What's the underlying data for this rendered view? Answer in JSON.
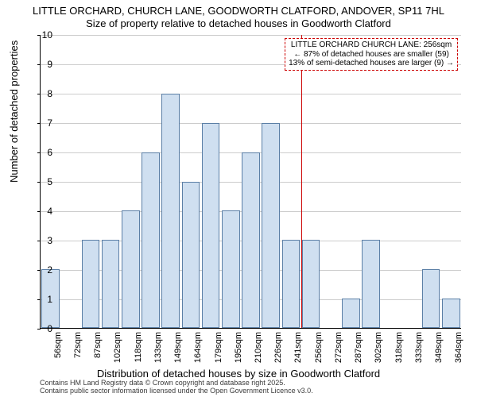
{
  "title_line1": "LITTLE ORCHARD, CHURCH LANE, GOODWORTH CLATFORD, ANDOVER, SP11 7HL",
  "title_line2": "Size of property relative to detached houses in Goodworth Clatford",
  "ylabel": "Number of detached properties",
  "xlabel": "Distribution of detached houses by size in Goodworth Clatford",
  "footer_line1": "Contains HM Land Registry data © Crown copyright and database right 2025.",
  "footer_line2": "Contains public sector information licensed under the Open Government Licence v3.0.",
  "chart": {
    "type": "histogram",
    "ylim": [
      0,
      10
    ],
    "ytick_step": 1,
    "bar_fill": "#cfdff0",
    "bar_border": "#5b7fa6",
    "grid_color": "#cccccc",
    "background_color": "#ffffff",
    "axis_color": "#000000",
    "vline_color": "#cc0000",
    "categories": [
      "56sqm",
      "72sqm",
      "87sqm",
      "102sqm",
      "118sqm",
      "133sqm",
      "149sqm",
      "164sqm",
      "179sqm",
      "195sqm",
      "210sqm",
      "226sqm",
      "241sqm",
      "256sqm",
      "272sqm",
      "287sqm",
      "302sqm",
      "318sqm",
      "333sqm",
      "349sqm",
      "364sqm"
    ],
    "values": [
      2,
      0,
      3,
      3,
      4,
      6,
      8,
      5,
      7,
      4,
      6,
      7,
      3,
      3,
      0,
      1,
      3,
      0,
      0,
      2,
      1
    ],
    "vline_at_category_index": 13,
    "annotation": {
      "line1": "LITTLE ORCHARD CHURCH LANE: 256sqm",
      "line2": "← 87% of detached houses are smaller (59)",
      "line3": "13% of semi-detached houses are larger (9) →",
      "fontsize": 10,
      "border_color": "#cc0000",
      "bg": "#ffffff"
    }
  }
}
